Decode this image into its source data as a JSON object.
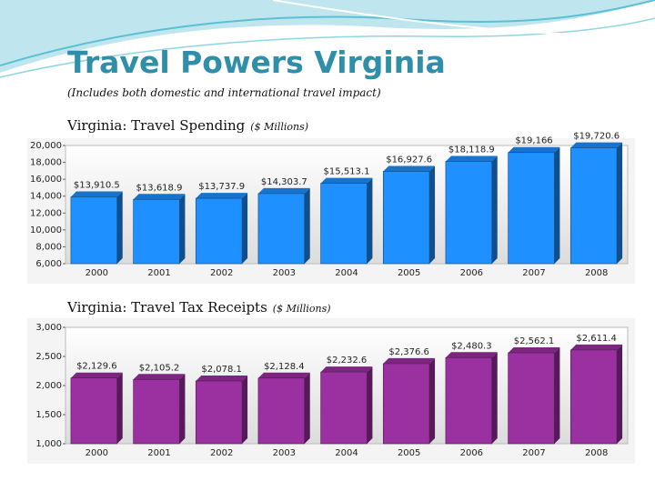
{
  "title": "Travel Powers Virginia",
  "subtitle": "(Includes both domestic and international travel impact)",
  "chart_data": [
    {
      "type": "bar",
      "title": "Virginia: Travel Spending",
      "unit": "($ Millions)",
      "categories": [
        "2000",
        "2001",
        "2002",
        "2003",
        "2004",
        "2005",
        "2006",
        "2007",
        "2008"
      ],
      "values": [
        13910.5,
        13618.9,
        13737.9,
        14303.7,
        15513.1,
        16927.6,
        18118.9,
        19166,
        19720.6
      ],
      "value_labels": [
        "$13,910.5",
        "$13,618.9",
        "$13,737.9",
        "$14,303.7",
        "$15,513.1",
        "$16,927.6",
        "$18,118.9",
        "$19,166",
        "$19,720.6"
      ],
      "color": "#1e90ff",
      "ylim": [
        6000,
        20000
      ],
      "yticks": [
        {
          "value": 6000,
          "label": "6,000"
        },
        {
          "value": 8000,
          "label": "8,000"
        },
        {
          "value": 10000,
          "label": "10,000"
        },
        {
          "value": 12000,
          "label": "12,000"
        },
        {
          "value": 14000,
          "label": "14,000"
        },
        {
          "value": 16000,
          "label": "16,000"
        },
        {
          "value": 18000,
          "label": "18,000"
        },
        {
          "value": 20000,
          "label": "20,000"
        }
      ]
    },
    {
      "type": "bar",
      "title": "Virginia: Travel Tax Receipts",
      "unit": "($ Millions)",
      "categories": [
        "2000",
        "2001",
        "2002",
        "2003",
        "2004",
        "2005",
        "2006",
        "2007",
        "2008"
      ],
      "values": [
        2129.6,
        2105.2,
        2078.1,
        2128.4,
        2232.6,
        2376.6,
        2480.3,
        2562.1,
        2611.4
      ],
      "value_labels": [
        "$2,129.6",
        "$2,105.2",
        "$2,078.1",
        "$2,128.4",
        "$2,232.6",
        "$2,376.6",
        "$2,480.3",
        "$2,562.1",
        "$2,611.4"
      ],
      "color": "#9b30a0",
      "ylim": [
        1000,
        3000
      ],
      "yticks": [
        {
          "value": 1000,
          "label": "1,000"
        },
        {
          "value": 1500,
          "label": "1,500"
        },
        {
          "value": 2000,
          "label": "2,000"
        },
        {
          "value": 2500,
          "label": "2,500"
        },
        {
          "value": 3000,
          "label": "3,000"
        }
      ]
    }
  ]
}
